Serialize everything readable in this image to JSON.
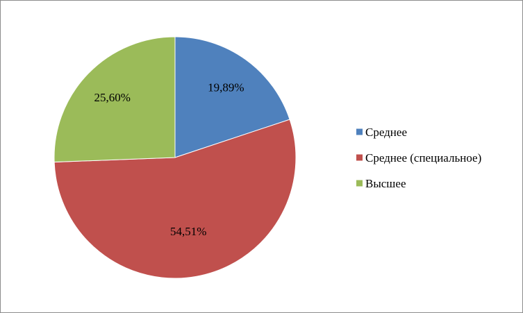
{
  "chart_data": {
    "type": "pie",
    "title": "",
    "categories": [
      "Среднее",
      "Среднее (специальное)",
      "Высшее"
    ],
    "values": [
      19.89,
      54.51,
      25.6
    ],
    "data_labels": [
      "19,89%",
      "54,51%",
      "25,60%"
    ],
    "colors": [
      "#4f81bd",
      "#c0504d",
      "#9bbb59"
    ],
    "start_angle_deg": 0,
    "direction": "clockwise",
    "legend_position": "right"
  }
}
